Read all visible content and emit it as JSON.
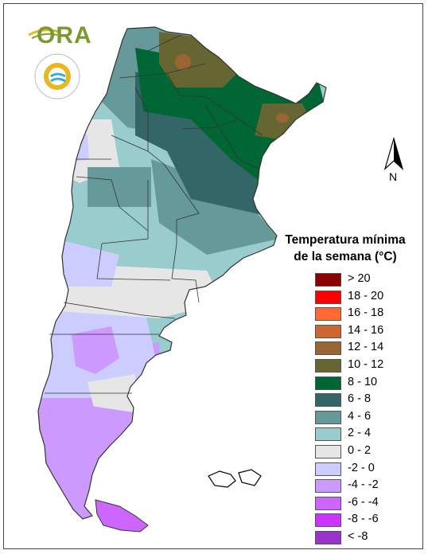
{
  "logos": {
    "ora_text": "ORA",
    "smn_ring_text": "SERVICIO METEOROLÓGICO NACIONAL",
    "smn_country": "ARGENTINA"
  },
  "north_arrow": {
    "label": "N"
  },
  "legend": {
    "title_line1": "Temperatura mínima",
    "title_line2": "de la semana (°C)",
    "items": [
      {
        "label": "> 20",
        "color": "#8b0000"
      },
      {
        "label": "18 - 20",
        "color": "#ff0000"
      },
      {
        "label": "16 - 18",
        "color": "#ff6a33"
      },
      {
        "label": "14 - 16",
        "color": "#cc6633"
      },
      {
        "label": "12 - 14",
        "color": "#996633"
      },
      {
        "label": "10 - 12",
        "color": "#666633"
      },
      {
        "label": "8 - 10",
        "color": "#006633"
      },
      {
        "label": "6 - 8",
        "color": "#336666"
      },
      {
        "label": "4 - 6",
        "color": "#669999"
      },
      {
        "label": "2 - 4",
        "color": "#99cccc"
      },
      {
        "label": "0 - 2",
        "color": "#e6e6e6"
      },
      {
        "label": "-2 - 0",
        "color": "#ccccff"
      },
      {
        "label": "-4 - -2",
        "color": "#cc99ff"
      },
      {
        "label": "-6 - -4",
        "color": "#cc66ff"
      },
      {
        "label": "-8 - -6",
        "color": "#cc33ff"
      },
      {
        "label": "< -8",
        "color": "#9933cc"
      }
    ]
  }
}
